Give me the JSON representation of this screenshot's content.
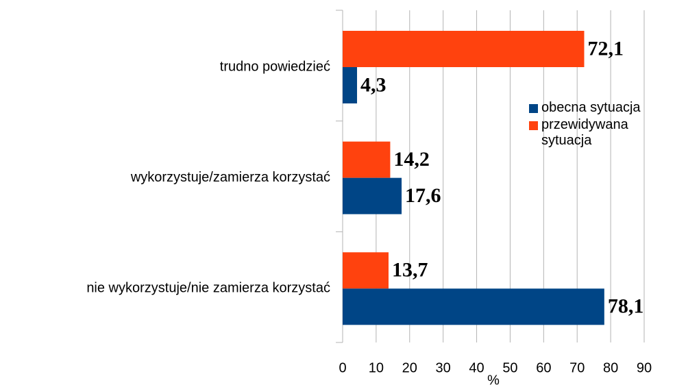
{
  "chart_data": {
    "type": "barh",
    "categories": [
      "trudno powiedzieć",
      "wykorzystuje/zamierza korzystać",
      "nie wykorzystuje/nie zamierza korzystać"
    ],
    "series": [
      {
        "name": "obecna sytuacja",
        "color": "#004586",
        "values": [
          4.3,
          17.6,
          78.1
        ],
        "value_labels": [
          "4,3",
          "17,6",
          "78,1"
        ]
      },
      {
        "name": "przewidywana sytuacja",
        "color": "#ff420e",
        "values": [
          72.1,
          14.2,
          13.7
        ],
        "value_labels": [
          "72,1",
          "14,2",
          "13,7"
        ]
      }
    ],
    "xlabel": "%",
    "xlim": [
      0,
      90
    ],
    "xticks": [
      0,
      10,
      20,
      30,
      40,
      50,
      60,
      70,
      80,
      90
    ],
    "grid": true
  }
}
